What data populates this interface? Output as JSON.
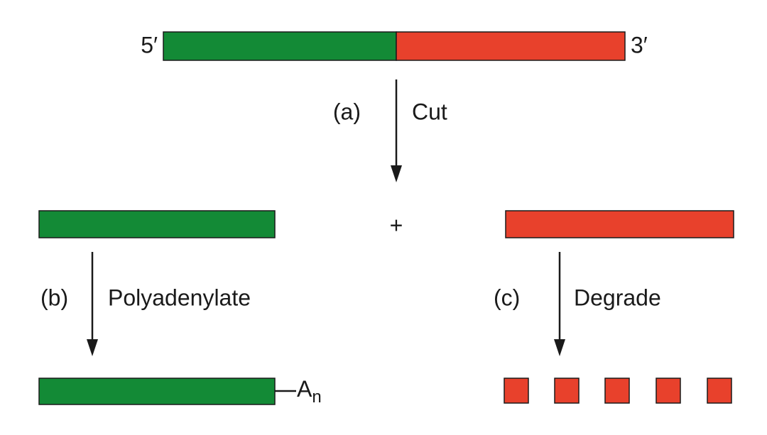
{
  "top": {
    "five_prime": "5′",
    "three_prime": "3′"
  },
  "step_a": {
    "label": "(a)",
    "action": "Cut"
  },
  "plus": "+",
  "step_b": {
    "label": "(b)",
    "action": "Polyadenylate"
  },
  "step_c": {
    "label": "(c)",
    "action": "Degrade"
  },
  "tail": {
    "base": "A",
    "subscript": "n"
  }
}
